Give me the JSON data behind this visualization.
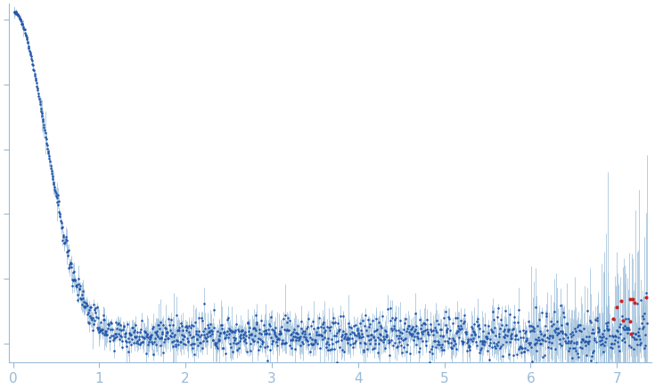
{
  "title": "",
  "xlabel": "",
  "ylabel": "",
  "xlim": [
    -0.05,
    7.4
  ],
  "dot_color": "#2255aa",
  "error_color": "#99bbd8",
  "outlier_color": "#cc2222",
  "background_color": "#ffffff",
  "axis_color": "#99bbd8",
  "tick_color": "#99bbd8",
  "tick_label_color": "#99bbd8",
  "dot_size": 3.5,
  "error_linewidth": 0.5,
  "figsize": [
    7.35,
    4.37
  ],
  "dpi": 100,
  "ylim": [
    -0.06,
    1.05
  ],
  "yticks": [
    0.0,
    0.2,
    0.4,
    0.6,
    0.8,
    1.0
  ]
}
